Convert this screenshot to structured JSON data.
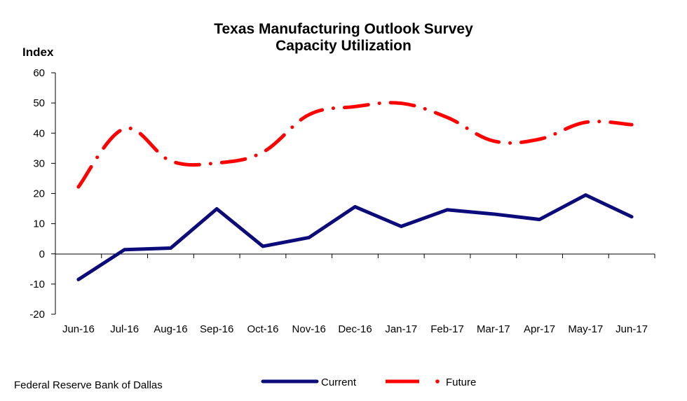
{
  "chart_data": {
    "type": "line",
    "title": [
      "Texas Manufacturing Outlook Survey",
      "Capacity Utilization"
    ],
    "ylabel": "Index",
    "xlabel": "",
    "ylim": [
      -20,
      60
    ],
    "yticks": [
      -20,
      -10,
      0,
      10,
      20,
      30,
      40,
      50,
      60
    ],
    "grid": false,
    "legend_placement": "bottom",
    "categories": [
      "Jun-16",
      "Jul-16",
      "Aug-16",
      "Sep-16",
      "Oct-16",
      "Nov-16",
      "Dec-16",
      "Jan-17",
      "Feb-17",
      "Mar-17",
      "Apr-17",
      "May-17",
      "Jun-17"
    ],
    "series": [
      {
        "name": "Current",
        "style": "solid",
        "color": "#0b0b7a",
        "values": [
          -8.5,
          1.4,
          1.9,
          14.9,
          2.5,
          5.4,
          15.6,
          9.1,
          14.6,
          13.2,
          11.4,
          19.5,
          12.3
        ]
      },
      {
        "name": "Future",
        "style": "dash-dot",
        "color": "#ff0000",
        "values": [
          22.2,
          41.5,
          30.8,
          30.1,
          33.7,
          46.1,
          48.8,
          49.9,
          45.2,
          37.4,
          38.0,
          43.6,
          42.8
        ]
      }
    ]
  },
  "source": "Federal Reserve Bank of Dallas"
}
